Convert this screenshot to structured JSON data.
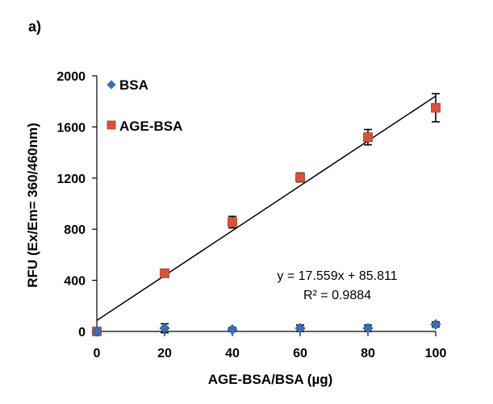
{
  "panel_label": "a)",
  "colors": {
    "bsa": "#3a6fb7",
    "age_bsa": "#d9533a",
    "age_bsa_edge": "#a83a24",
    "fit_line": "#000000",
    "error_bars": "#000000"
  },
  "chart_data": {
    "type": "scatter",
    "title": "",
    "xlabel": "AGE-BSA/BSA (µg)",
    "ylabel": "RFU (Ex/Em= 360/460nm)",
    "xlim": [
      0,
      100
    ],
    "ylim": [
      0,
      2000
    ],
    "x_ticks": [
      0,
      20,
      40,
      60,
      80,
      100
    ],
    "y_ticks": [
      0,
      400,
      800,
      1200,
      1600,
      2000
    ],
    "x_tick_labels": [
      "0",
      "20",
      "40",
      "60",
      "80",
      "100"
    ],
    "y_tick_labels": [
      "0",
      "400",
      "800",
      "1200",
      "1600",
      "2000"
    ],
    "grid": false,
    "legend_position": "top-left",
    "series": [
      {
        "name": "BSA",
        "marker": "diamond",
        "color": "#3a6fb7",
        "x": [
          0,
          20,
          40,
          60,
          80,
          100
        ],
        "y": [
          0,
          25,
          15,
          25,
          25,
          55
        ],
        "error": [
          0,
          35,
          15,
          25,
          25,
          20
        ]
      },
      {
        "name": "AGE-BSA",
        "marker": "square",
        "color": "#d9533a",
        "x": [
          0,
          20,
          40,
          60,
          80,
          100
        ],
        "y": [
          0,
          455,
          855,
          1205,
          1520,
          1750
        ],
        "error": [
          0,
          15,
          45,
          35,
          60,
          110
        ]
      }
    ],
    "trendline": {
      "series": "AGE-BSA",
      "slope": 17.559,
      "intercept": 85.811,
      "x_range": [
        0,
        100
      ],
      "equation_text": "y = 17.559x + 85.811",
      "r2_text": "R² = 0.9884"
    }
  }
}
